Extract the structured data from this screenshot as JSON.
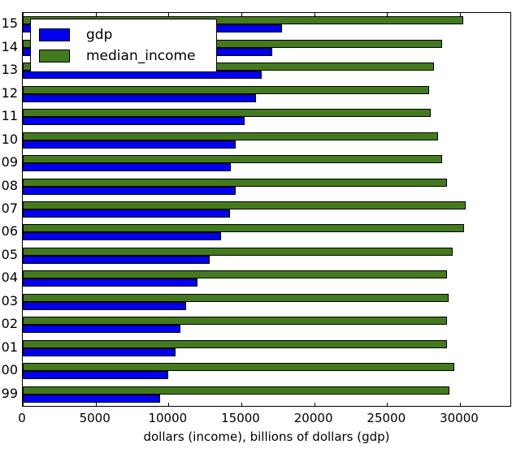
{
  "chart_data": {
    "type": "bar",
    "orientation": "horizontal",
    "title": "",
    "xlabel": "dollars (income), billions of dollars (gdp)",
    "ylabel": "",
    "categories": [
      "15",
      "14",
      "13",
      "12",
      "11",
      "10",
      "09",
      "08",
      "07",
      "06",
      "05",
      "04",
      "03",
      "02",
      "01",
      "00",
      "99"
    ],
    "series": [
      {
        "name": "gdp",
        "color": "#0000ee",
        "values": [
          17800,
          17100,
          16400,
          16000,
          15200,
          14600,
          14300,
          14600,
          14200,
          13600,
          12800,
          12000,
          11200,
          10800,
          10500,
          10000,
          9400
        ]
      },
      {
        "name": "median_income",
        "color": "#447a1e",
        "values": [
          30200,
          28800,
          28200,
          27900,
          28000,
          28500,
          28800,
          29100,
          30400,
          30300,
          29500,
          29100,
          29200,
          29100,
          29100,
          29600,
          29300
        ]
      }
    ],
    "x_ticks": [
      0,
      5000,
      10000,
      15000,
      20000,
      25000,
      30000
    ],
    "x_tick_labels": [
      "0",
      "5000",
      "10000",
      "15000",
      "20000",
      "25000",
      "30000"
    ],
    "xlim": [
      0,
      33460
    ],
    "grid": false,
    "legend_position": "upper left",
    "bar_order_within_group": [
      "median_income",
      "gdp"
    ]
  },
  "legend": {
    "items": [
      {
        "label": "gdp",
        "color": "#0000ee"
      },
      {
        "label": "median_income",
        "color": "#447a1e"
      }
    ]
  },
  "colors": {
    "gdp": "#0000ee",
    "median_income": "#447a1e",
    "axis": "#000000",
    "background": "#ffffff"
  }
}
